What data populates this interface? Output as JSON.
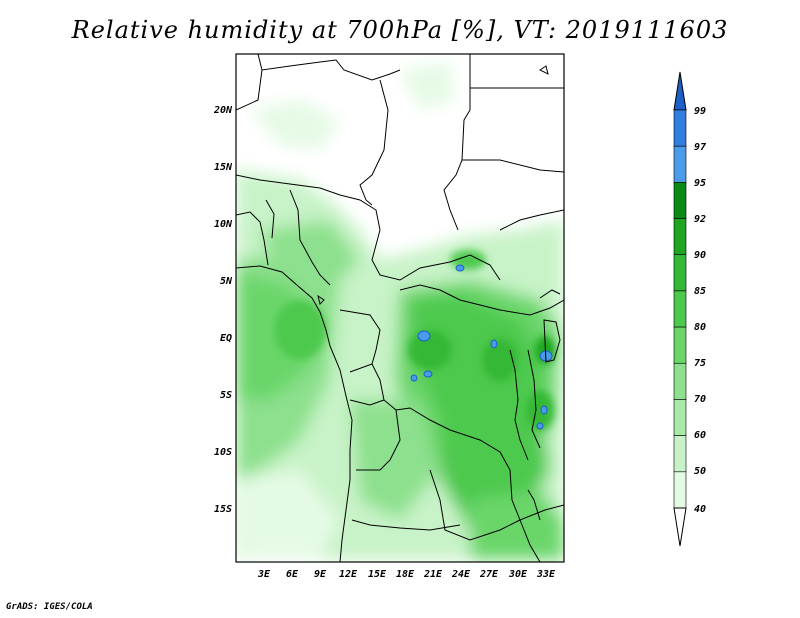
{
  "title": "Relative humidity at 700hPa [%], VT: 2019111603",
  "credit": "GrADS: IGES/COLA",
  "map": {
    "lat_ticks": [
      "20N",
      "15N",
      "10N",
      "5N",
      "EQ",
      "5S",
      "10S",
      "15S"
    ],
    "lon_ticks": [
      "3E",
      "6E",
      "9E",
      "12E",
      "15E",
      "18E",
      "21E",
      "24E",
      "27E",
      "30E",
      "33E"
    ]
  },
  "colorbar": {
    "labels": [
      "99",
      "97",
      "95",
      "92",
      "90",
      "85",
      "80",
      "75",
      "70",
      "60",
      "50",
      "40"
    ],
    "colors": [
      "#1e5fc8",
      "#2f7ee0",
      "#4a9be8",
      "#0a8a17",
      "#1fa51f",
      "#35b835",
      "#4dc94d",
      "#6ad66a",
      "#8de08d",
      "#a9eaa9",
      "#c8f3c8",
      "#e5fae5"
    ]
  }
}
